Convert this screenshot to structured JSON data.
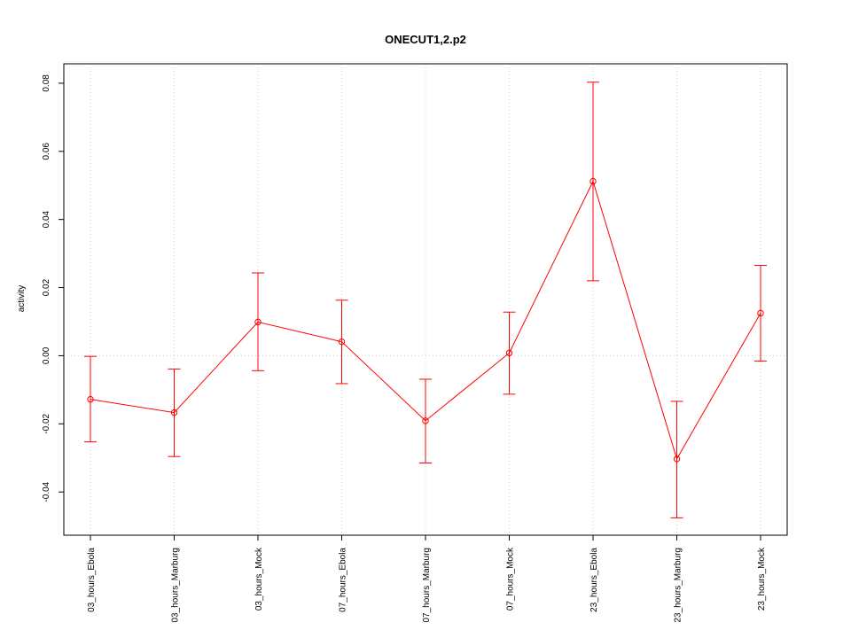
{
  "chart_data": {
    "type": "line",
    "title": "ONECUT1,2.p2",
    "xlabel": "",
    "ylabel": "activity",
    "categories": [
      "03_hours_Ebola",
      "03_hours_Marburg",
      "03_hours_Mock",
      "07_hours_Ebola",
      "07_hours_Marburg",
      "07_hours_Mock",
      "23_hours_Ebola",
      "23_hours_Marburg",
      "23_hours_Mock"
    ],
    "values": [
      -0.0128,
      -0.0167,
      0.0099,
      0.0041,
      -0.0191,
      0.0008,
      0.0512,
      -0.0303,
      0.0125
    ],
    "error_upper": [
      -0.0002,
      -0.0039,
      0.0243,
      0.0163,
      -0.0069,
      0.0128,
      0.0803,
      -0.0134,
      0.0265
    ],
    "error_lower": [
      -0.0253,
      -0.0296,
      -0.0044,
      -0.0082,
      -0.0315,
      -0.0113,
      0.022,
      -0.0476,
      -0.0016
    ],
    "yticks": [
      -0.04,
      -0.02,
      0.0,
      0.02,
      0.04,
      0.06,
      0.08
    ],
    "ytick_labels": [
      "-0.04",
      "-0.02",
      "0.00",
      "0.02",
      "0.04",
      "0.06",
      "0.08"
    ],
    "ylim": [
      -0.0527,
      0.0857
    ],
    "reference_line": 0.0,
    "grid": true,
    "series_color": "#ff0000",
    "grid_color": "#d3d3d3"
  }
}
